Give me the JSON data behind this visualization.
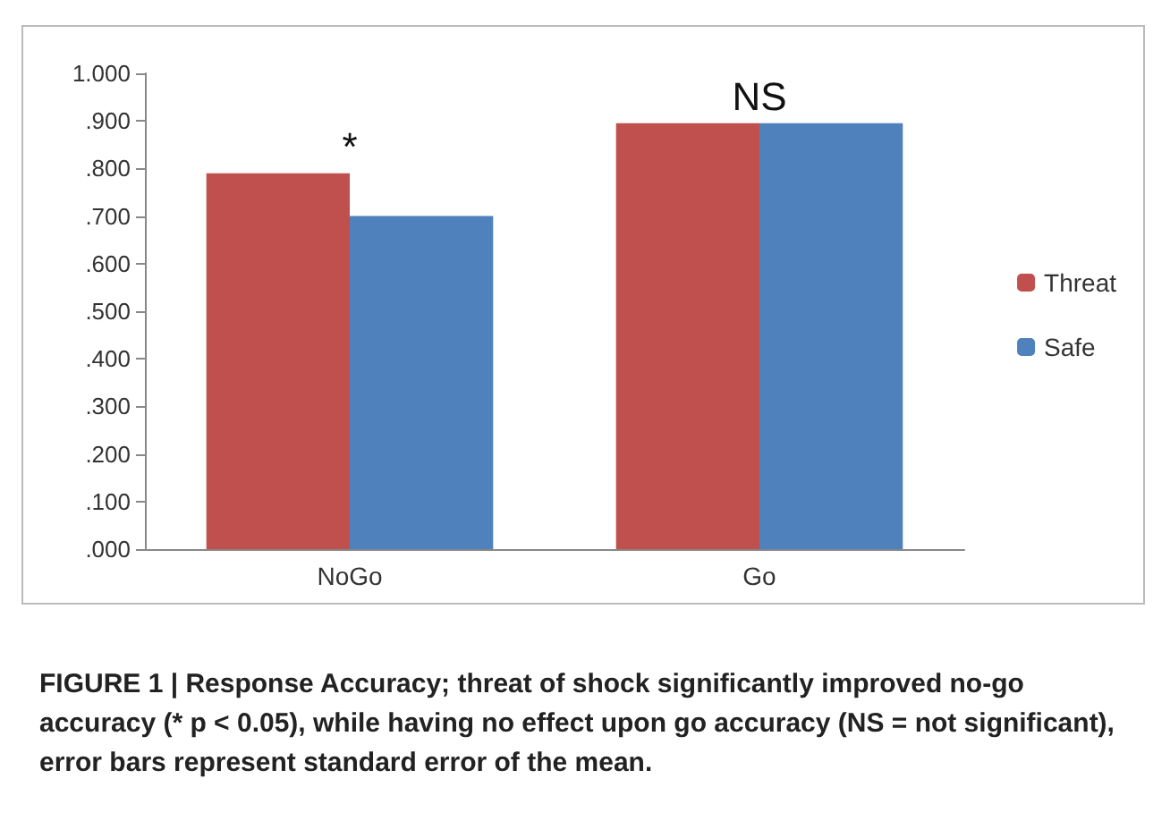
{
  "chart_data": {
    "type": "bar",
    "categories": [
      "NoGo",
      "Go"
    ],
    "series": [
      {
        "name": "Threat",
        "color": "#c0504d",
        "values": [
          0.79,
          0.895
        ]
      },
      {
        "name": "Safe",
        "color": "#4f81bd",
        "values": [
          0.7,
          0.895
        ]
      }
    ],
    "ylim": [
      0,
      1
    ],
    "yticks": [
      {
        "value": 0,
        "label": ".000"
      },
      {
        "value": 0.1,
        "label": ".100"
      },
      {
        "value": 0.2,
        "label": ".200"
      },
      {
        "value": 0.3,
        "label": ".300"
      },
      {
        "value": 0.4,
        "label": ".400"
      },
      {
        "value": 0.5,
        "label": ".500"
      },
      {
        "value": 0.6,
        "label": ".600"
      },
      {
        "value": 0.7,
        "label": ".700"
      },
      {
        "value": 0.8,
        "label": ".800"
      },
      {
        "value": 0.9,
        "label": ".900"
      },
      {
        "value": 1,
        "label": "1.000"
      }
    ],
    "grid": false,
    "legend": "right",
    "annotations": [
      {
        "text": "*",
        "x": "NoGo",
        "y": 0.79
      },
      {
        "text": "NS",
        "x": "Go",
        "y": 0.895
      },
      "FIGURE 1 | Response Accuracy; threat of shock significantly improved no-go accuracy (* p < 0.05), while having no effect upon go accuracy (NS = not significant), error bars represent standard error of the mean."
    ]
  }
}
